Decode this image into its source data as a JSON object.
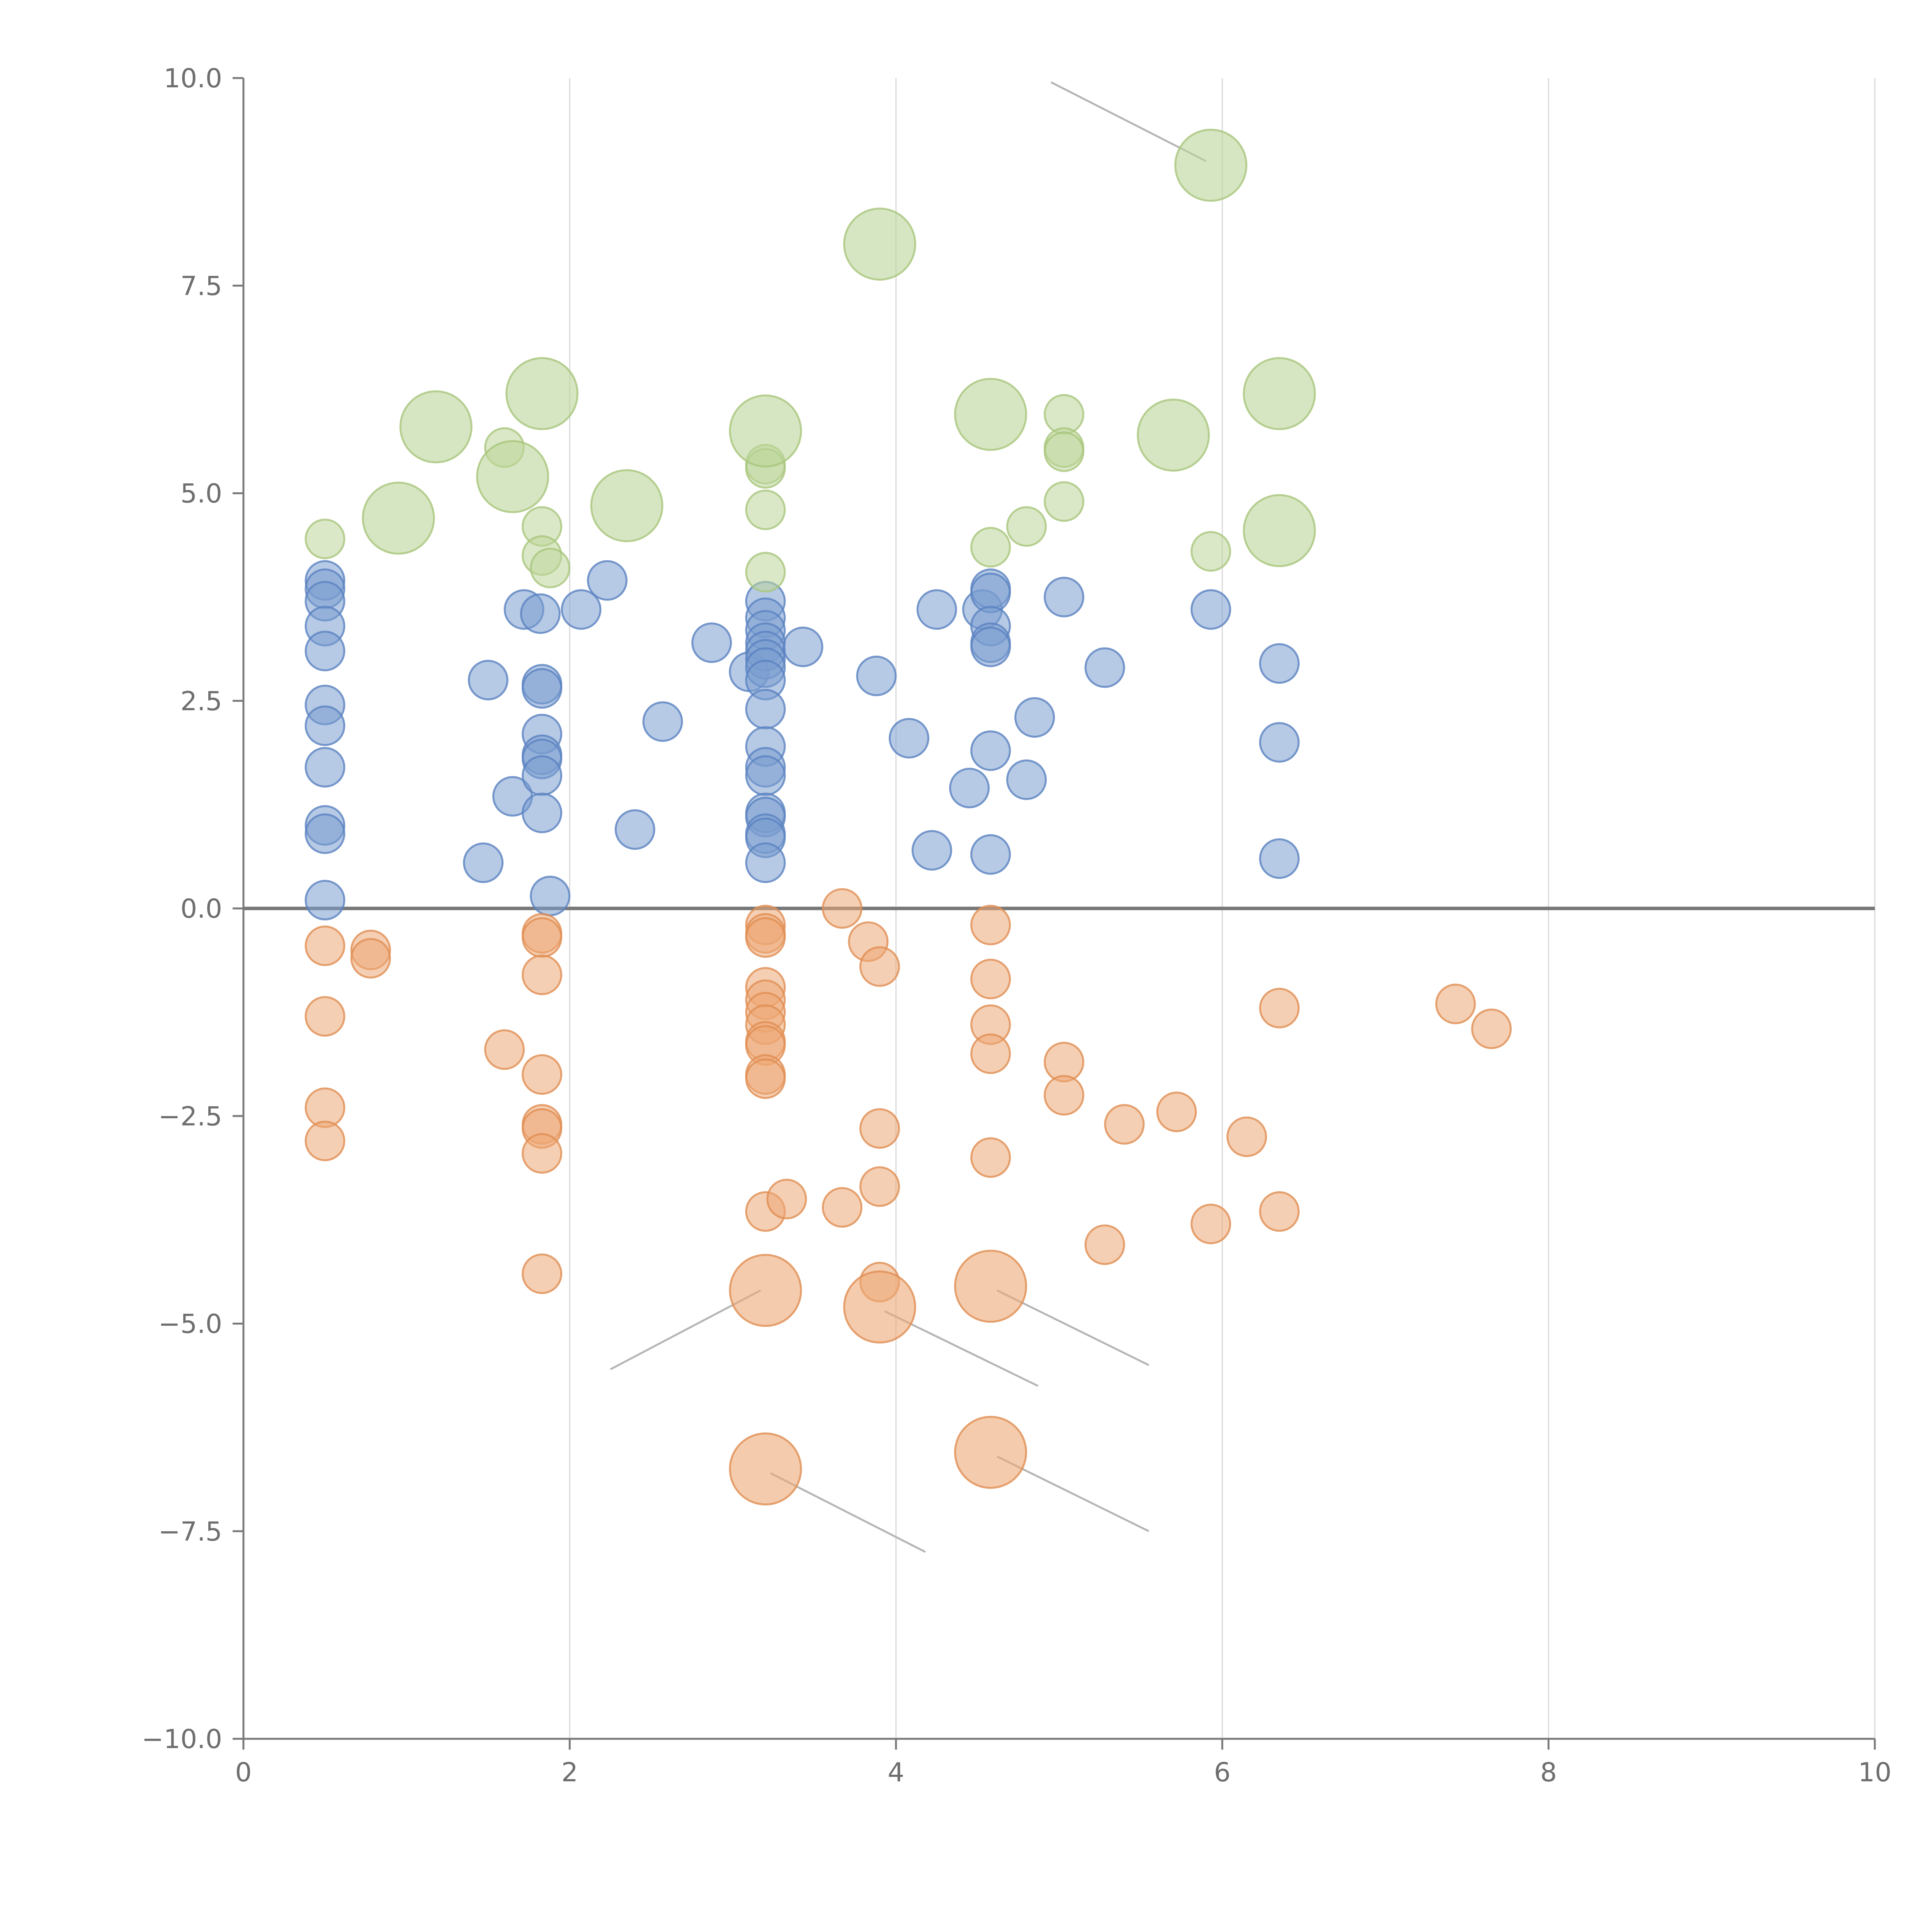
{
  "chart_data": {
    "type": "scatter",
    "title": "",
    "xlabel": "",
    "ylabel": "",
    "xlim": [
      0,
      10
    ],
    "ylim": [
      -10,
      10
    ],
    "grid": "vertical",
    "legend": "none",
    "x_ticks": [
      0,
      2,
      4,
      6,
      8,
      10
    ],
    "y_ticks": [
      -10,
      -7.5,
      -5,
      -2.5,
      0,
      2.5,
      5,
      7.5,
      10
    ],
    "x_tick_labels": [
      "0",
      "2",
      "4",
      "6",
      "8",
      "10"
    ],
    "y_tick_labels": [
      "−10.0",
      "−7.5",
      "−5.0",
      "−2.5",
      "0.0",
      "2.5",
      "5.0",
      "7.5",
      "10.0"
    ],
    "colors": {
      "blue": "#7a9dd0",
      "orange": "#eca874",
      "green": "#bdd69a",
      "axis": "#7a7a7a",
      "grid": "#d9d9d9",
      "zero_line": "#777777",
      "leader_line": "#b5b5b5"
    },
    "series": [
      {
        "name": "blue",
        "color": "#7a9dd0",
        "stroke": "#5a82c0",
        "points": [
          [
            0.5,
            3.95
          ],
          [
            0.5,
            3.85
          ],
          [
            0.5,
            3.7
          ],
          [
            0.5,
            3.4
          ],
          [
            0.5,
            3.1
          ],
          [
            0.5,
            2.45
          ],
          [
            0.5,
            2.2
          ],
          [
            0.5,
            1.7
          ],
          [
            0.5,
            1.0
          ],
          [
            0.5,
            0.9
          ],
          [
            0.5,
            0.1
          ],
          [
            1.47,
            0.55
          ],
          [
            1.5,
            2.75
          ],
          [
            1.65,
            1.35
          ],
          [
            1.72,
            3.6
          ],
          [
            1.82,
            3.55
          ],
          [
            1.83,
            2.7
          ],
          [
            1.83,
            2.65
          ],
          [
            1.83,
            2.1
          ],
          [
            1.83,
            1.85
          ],
          [
            1.83,
            1.8
          ],
          [
            1.83,
            1.6
          ],
          [
            1.83,
            1.15
          ],
          [
            1.88,
            0.15
          ],
          [
            2.07,
            3.6
          ],
          [
            2.23,
            3.95
          ],
          [
            2.4,
            0.95
          ],
          [
            2.57,
            2.25
          ],
          [
            2.87,
            3.2
          ],
          [
            3.1,
            2.85
          ],
          [
            3.2,
            3.7
          ],
          [
            3.2,
            3.5
          ],
          [
            3.2,
            3.35
          ],
          [
            3.2,
            3.2
          ],
          [
            3.2,
            3.1
          ],
          [
            3.2,
            3.0
          ],
          [
            3.2,
            2.9
          ],
          [
            3.2,
            2.75
          ],
          [
            3.2,
            2.4
          ],
          [
            3.2,
            1.95
          ],
          [
            3.2,
            1.7
          ],
          [
            3.2,
            1.6
          ],
          [
            3.2,
            1.15
          ],
          [
            3.2,
            1.1
          ],
          [
            3.2,
            0.9
          ],
          [
            3.2,
            0.85
          ],
          [
            3.2,
            0.55
          ],
          [
            3.43,
            3.15
          ],
          [
            3.88,
            2.8
          ],
          [
            4.08,
            2.05
          ],
          [
            4.22,
            0.7
          ],
          [
            4.25,
            3.6
          ],
          [
            4.45,
            1.45
          ],
          [
            4.53,
            3.6
          ],
          [
            4.58,
            3.85
          ],
          [
            4.58,
            3.8
          ],
          [
            4.58,
            3.4
          ],
          [
            4.58,
            3.2
          ],
          [
            4.58,
            3.15
          ],
          [
            4.58,
            1.9
          ],
          [
            4.58,
            0.65
          ],
          [
            4.8,
            1.55
          ],
          [
            4.85,
            2.3
          ],
          [
            5.03,
            3.75
          ],
          [
            5.28,
            2.9
          ],
          [
            5.93,
            3.6
          ],
          [
            6.35,
            2.95
          ],
          [
            6.35,
            2.0
          ],
          [
            6.35,
            0.6
          ]
        ]
      },
      {
        "name": "orange",
        "color": "#eca874",
        "stroke": "#e08d52",
        "points": [
          [
            0.5,
            -0.45
          ],
          [
            0.5,
            -1.3
          ],
          [
            0.5,
            -2.4
          ],
          [
            0.5,
            -2.8
          ],
          [
            0.78,
            -0.5
          ],
          [
            0.78,
            -0.6
          ],
          [
            1.6,
            -1.7
          ],
          [
            1.83,
            -0.3
          ],
          [
            1.83,
            -0.35
          ],
          [
            1.83,
            -0.8
          ],
          [
            1.83,
            -2.0
          ],
          [
            1.83,
            -2.6
          ],
          [
            1.83,
            -2.65
          ],
          [
            1.83,
            -2.95
          ],
          [
            1.83,
            -4.4
          ],
          [
            3.2,
            -0.2
          ],
          [
            3.2,
            -0.3
          ],
          [
            3.2,
            -0.35
          ],
          [
            3.2,
            -0.95
          ],
          [
            3.2,
            -1.1
          ],
          [
            3.2,
            -1.25
          ],
          [
            3.2,
            -1.4
          ],
          [
            3.2,
            -1.6
          ],
          [
            3.2,
            -1.65
          ],
          [
            3.2,
            -2.0
          ],
          [
            3.2,
            -2.05
          ],
          [
            3.2,
            -3.65
          ],
          [
            3.33,
            -3.5
          ],
          [
            3.67,
            0.0
          ],
          [
            3.67,
            -3.6
          ],
          [
            3.83,
            -0.4
          ],
          [
            3.9,
            -0.7
          ],
          [
            3.9,
            -2.65
          ],
          [
            3.9,
            -3.35
          ],
          [
            3.9,
            -4.5
          ],
          [
            4.58,
            -0.2
          ],
          [
            4.58,
            -0.85
          ],
          [
            4.58,
            -1.4
          ],
          [
            4.58,
            -1.75
          ],
          [
            4.58,
            -3.0
          ],
          [
            5.03,
            -1.85
          ],
          [
            5.03,
            -2.25
          ],
          [
            5.28,
            -4.05
          ],
          [
            5.4,
            -2.6
          ],
          [
            5.72,
            -2.45
          ],
          [
            5.93,
            -3.8
          ],
          [
            6.15,
            -2.75
          ],
          [
            6.35,
            -1.2
          ],
          [
            6.35,
            -3.65
          ],
          [
            7.43,
            -1.15
          ],
          [
            7.65,
            -1.45
          ]
        ],
        "large_points": [
          [
            3.2,
            -4.6
          ],
          [
            3.9,
            -4.8
          ],
          [
            4.58,
            -4.55
          ],
          [
            3.2,
            -6.75
          ],
          [
            4.58,
            -6.55
          ]
        ]
      },
      {
        "name": "green",
        "color": "#bdd69a",
        "stroke": "#a7c57c",
        "points": [
          [
            0.5,
            4.45
          ],
          [
            1.6,
            5.55
          ],
          [
            1.83,
            4.6
          ],
          [
            1.83,
            4.25
          ],
          [
            1.88,
            4.1
          ],
          [
            3.2,
            5.35
          ],
          [
            3.2,
            5.3
          ],
          [
            3.2,
            4.8
          ],
          [
            3.2,
            4.05
          ],
          [
            4.58,
            4.35
          ],
          [
            4.8,
            4.6
          ],
          [
            5.03,
            5.95
          ],
          [
            5.03,
            5.55
          ],
          [
            5.03,
            5.5
          ],
          [
            5.03,
            4.9
          ],
          [
            5.93,
            4.3
          ]
        ],
        "large_points": [
          [
            0.95,
            4.7
          ],
          [
            1.18,
            5.8
          ],
          [
            1.65,
            5.2
          ],
          [
            1.83,
            6.2
          ],
          [
            2.35,
            4.85
          ],
          [
            3.2,
            5.75
          ],
          [
            3.9,
            8.0
          ],
          [
            4.58,
            5.95
          ],
          [
            5.7,
            5.7
          ],
          [
            5.93,
            8.95
          ],
          [
            6.35,
            6.2
          ],
          [
            6.35,
            4.55
          ]
        ]
      }
    ]
  }
}
